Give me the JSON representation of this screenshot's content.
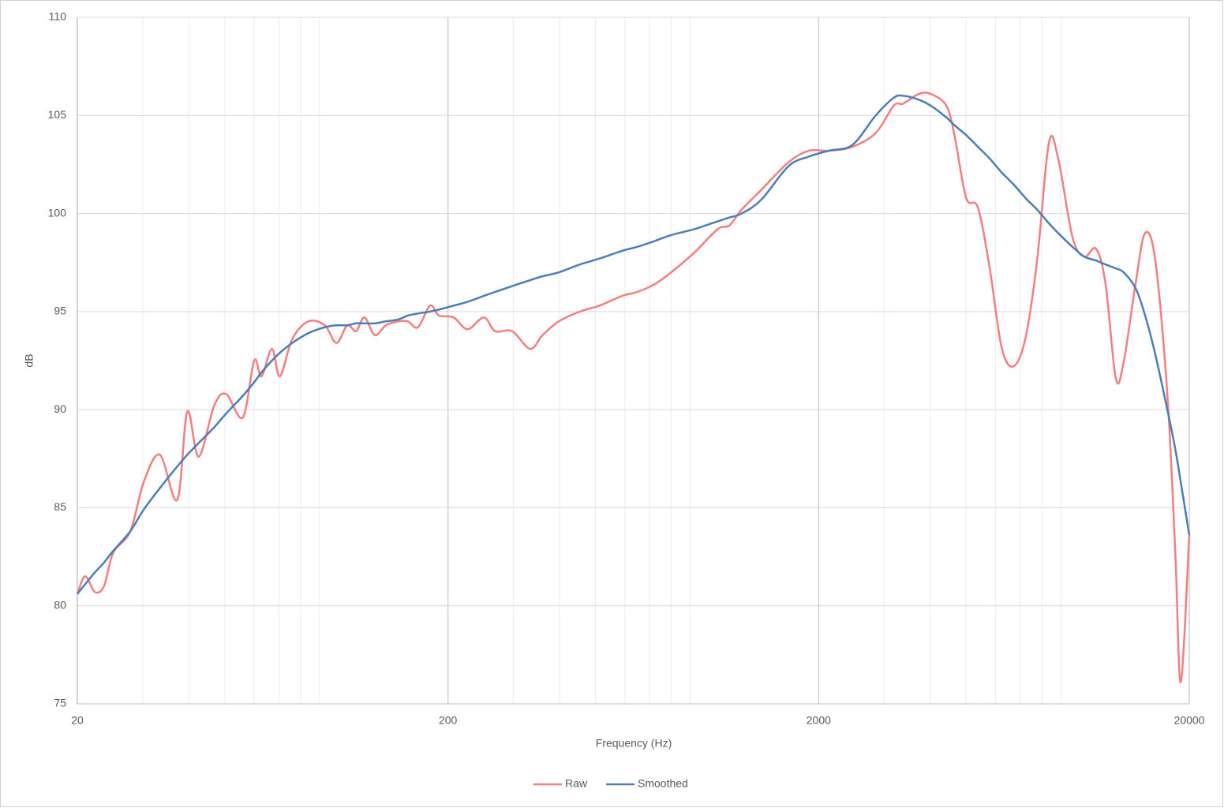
{
  "chart_data": {
    "type": "line",
    "x_label": "Frequency (Hz)",
    "y_label": "dB",
    "x": [
      20,
      21,
      22.3,
      23.6,
      25,
      27.8,
      30.2,
      33.4,
      37.2,
      39.6,
      42.5,
      46.8,
      50.4,
      55.9,
      60,
      62.8,
      67,
      70.4,
      76,
      84,
      93,
      100,
      107,
      113,
      119,
      127,
      136,
      147,
      156,
      166,
      179,
      189,
      207,
      226,
      250,
      268,
      298,
      333,
      360,
      398,
      454,
      512,
      591,
      648,
      723,
      800,
      923,
      1068,
      1150,
      1240,
      1400,
      1656,
      1880,
      2130,
      2467,
      2851,
      3190,
      3380,
      3730,
      4010,
      4420,
      4650,
      5000,
      5380,
      5790,
      6230,
      6700,
      7220,
      7770,
      8360,
      8860,
      9680,
      10420,
      11210,
      11890,
      12670,
      13300,
      14320,
      15200,
      16200,
      17450,
      18330,
      18970,
      20000
    ],
    "series": [
      {
        "name": "Raw",
        "color": "#f47e7e",
        "values": [
          80.6,
          81.5,
          80.7,
          81.0,
          82.7,
          83.8,
          86.3,
          87.7,
          85.4,
          89.9,
          87.6,
          90.2,
          90.8,
          89.6,
          92.5,
          91.7,
          93.1,
          91.7,
          93.6,
          94.5,
          94.3,
          93.4,
          94.3,
          94.0,
          94.7,
          93.8,
          94.3,
          94.5,
          94.5,
          94.2,
          95.3,
          94.8,
          94.7,
          94.1,
          94.7,
          94.0,
          94.0,
          93.1,
          93.8,
          94.5,
          95.0,
          95.3,
          95.8,
          96.0,
          96.4,
          97.0,
          98.0,
          99.2,
          99.4,
          100.2,
          101.2,
          102.6,
          103.2,
          103.2,
          103.4,
          104.1,
          105.5,
          105.6,
          106.1,
          106.1,
          105.5,
          104.0,
          100.8,
          100.3,
          97.2,
          93.2,
          92.2,
          93.6,
          97.6,
          103.6,
          102.8,
          98.8,
          97.8,
          98.2,
          96.4,
          91.6,
          92.4,
          96.4,
          99.0,
          97.6,
          90.8,
          82.8,
          76.1,
          83.6
        ]
      },
      {
        "name": "Smoothed",
        "color": "#4a7ebb",
        "values": [
          80.6,
          81.1,
          81.7,
          82.2,
          82.8,
          83.8,
          84.9,
          86.0,
          87.1,
          87.7,
          88.3,
          89.1,
          89.8,
          90.7,
          91.4,
          91.9,
          92.5,
          92.9,
          93.4,
          93.9,
          94.2,
          94.3,
          94.3,
          94.4,
          94.4,
          94.4,
          94.5,
          94.6,
          94.8,
          94.9,
          95.0,
          95.1,
          95.3,
          95.5,
          95.8,
          96.0,
          96.3,
          96.6,
          96.8,
          97.0,
          97.4,
          97.7,
          98.1,
          98.3,
          98.6,
          98.9,
          99.2,
          99.6,
          99.8,
          100.0,
          100.7,
          102.4,
          102.9,
          103.2,
          103.5,
          105.0,
          105.9,
          106.0,
          105.8,
          105.5,
          104.9,
          104.5,
          104.0,
          103.4,
          102.8,
          102.1,
          101.5,
          100.8,
          100.2,
          99.5,
          99.0,
          98.3,
          97.8,
          97.6,
          97.4,
          97.2,
          97.0,
          96.2,
          94.8,
          92.8,
          90.0,
          88.0,
          86.3,
          83.6
        ]
      }
    ],
    "xlog": true,
    "xlim": [
      20,
      20000
    ],
    "xticks": [
      20,
      200,
      2000,
      20000
    ],
    "ylim": [
      75,
      110
    ],
    "yticks": [
      75,
      80,
      85,
      90,
      95,
      100,
      105,
      110
    ],
    "grid": true,
    "minor_grid": true,
    "legend": "bottom"
  }
}
